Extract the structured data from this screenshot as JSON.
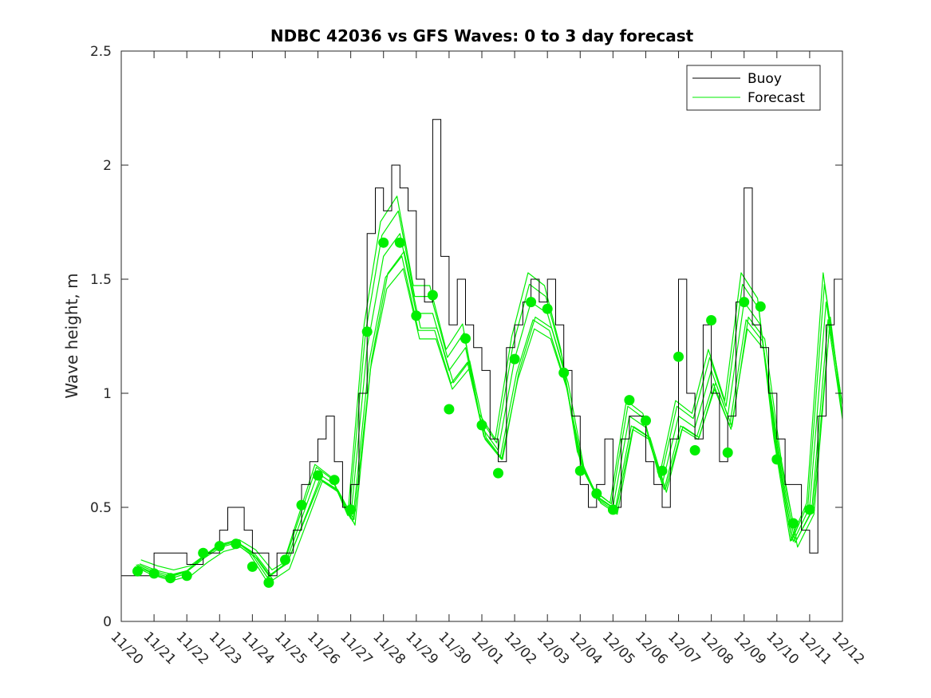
{
  "chart_data": {
    "type": "line",
    "title": "NDBC 42036 vs GFS Waves: 0 to 3 day forecast",
    "xlabel": "",
    "ylabel": "Wave height, m",
    "xlim": [
      0,
      22
    ],
    "ylim": [
      0,
      2.5
    ],
    "x_ticks": [
      0,
      1,
      2,
      3,
      4,
      5,
      6,
      7,
      8,
      9,
      10,
      11,
      12,
      13,
      14,
      15,
      16,
      17,
      18,
      19,
      20,
      21,
      22
    ],
    "x_tick_labels": [
      "11/20",
      "11/21",
      "11/22",
      "11/23",
      "11/24",
      "11/25",
      "11/26",
      "11/27",
      "11/28",
      "11/29",
      "11/30",
      "12/01",
      "12/02",
      "12/03",
      "12/04",
      "12/05",
      "12/06",
      "12/07",
      "12/08",
      "12/09",
      "12/10",
      "12/11",
      "12/12"
    ],
    "y_ticks": [
      0,
      0.5,
      1,
      1.5,
      2,
      2.5
    ],
    "y_tick_labels": [
      "0",
      "0.5",
      "1",
      "1.5",
      "2",
      "2.5"
    ],
    "legend": {
      "position": "top-right",
      "entries": [
        {
          "label": "Buoy",
          "color": "#000000"
        },
        {
          "label": "Forecast",
          "color": "#00ee00"
        }
      ]
    },
    "colors": {
      "buoy": "#000000",
      "forecast": "#00ee00",
      "analysis": "#00ee00"
    },
    "series": [
      {
        "name": "Buoy",
        "x_days": [
          0,
          0.5,
          1,
          1.5,
          2,
          2.5,
          3,
          3.25,
          3.5,
          3.75,
          4,
          4.25,
          4.5,
          4.75,
          5,
          5.25,
          5.5,
          5.75,
          6,
          6.25,
          6.5,
          6.75,
          7,
          7.25,
          7.5,
          7.75,
          8,
          8.25,
          8.5,
          8.75,
          9,
          9.25,
          9.5,
          9.75,
          10,
          10.25,
          10.5,
          10.75,
          11,
          11.25,
          11.5,
          11.75,
          12,
          12.25,
          12.5,
          12.75,
          13,
          13.25,
          13.5,
          13.75,
          14,
          14.25,
          14.5,
          14.75,
          15,
          15.25,
          15.5,
          15.75,
          16,
          16.25,
          16.5,
          16.75,
          17,
          17.25,
          17.5,
          17.75,
          18,
          18.25,
          18.5,
          18.75,
          19,
          19.25,
          19.5,
          19.75,
          20,
          20.25,
          20.5,
          20.75,
          21,
          21.25,
          21.5,
          21.75
        ],
        "values": [
          0.2,
          0.2,
          0.3,
          0.3,
          0.25,
          0.3,
          0.4,
          0.5,
          0.5,
          0.4,
          0.3,
          0.3,
          0.2,
          0.3,
          0.3,
          0.4,
          0.6,
          0.7,
          0.8,
          0.9,
          0.7,
          0.5,
          0.6,
          1.0,
          1.7,
          1.9,
          1.8,
          2.0,
          1.9,
          1.8,
          1.5,
          1.4,
          2.2,
          1.6,
          1.3,
          1.5,
          1.3,
          1.2,
          1.1,
          0.8,
          0.7,
          1.2,
          1.3,
          1.4,
          1.5,
          1.4,
          1.5,
          1.3,
          1.1,
          0.9,
          0.6,
          0.5,
          0.6,
          0.8,
          0.5,
          0.8,
          0.9,
          0.9,
          0.7,
          0.6,
          0.5,
          0.8,
          1.5,
          1.0,
          0.8,
          1.3,
          1.0,
          0.7,
          0.9,
          1.4,
          1.9,
          1.3,
          1.2,
          1.0,
          0.8,
          0.6,
          0.6,
          0.4,
          0.3,
          0.9,
          1.3,
          1.5
        ]
      },
      {
        "name": "Forecast",
        "x_days": [
          0.5,
          1,
          1.5,
          2,
          2.5,
          3,
          3.5,
          4,
          4.5,
          5,
          5.5,
          6,
          6.5,
          7,
          7.5,
          8,
          8.5,
          9,
          9.5,
          10,
          10.5,
          11,
          11.5,
          12,
          12.5,
          13,
          13.5,
          14,
          14.5,
          15,
          15.5,
          16,
          16.5,
          17,
          17.5,
          18,
          18.5,
          19,
          19.5,
          20,
          20.5,
          21,
          21.5,
          22
        ],
        "values": [
          0.25,
          0.22,
          0.2,
          0.22,
          0.28,
          0.33,
          0.35,
          0.3,
          0.2,
          0.25,
          0.45,
          0.65,
          0.6,
          0.45,
          1.2,
          1.6,
          1.7,
          1.35,
          1.35,
          1.1,
          1.2,
          0.85,
          0.75,
          1.15,
          1.4,
          1.35,
          1.1,
          0.7,
          0.55,
          0.5,
          0.9,
          0.85,
          0.6,
          0.9,
          0.85,
          1.1,
          0.9,
          1.4,
          1.3,
          0.75,
          0.35,
          0.5,
          1.4,
          0.95
        ]
      },
      {
        "name": "Forecast analysis points",
        "x_days": [
          0.5,
          1,
          1.5,
          2,
          2.5,
          3,
          3.5,
          4,
          4.5,
          5,
          5.5,
          6,
          6.5,
          7,
          7.5,
          8,
          8.5,
          9,
          9.5,
          10,
          10.5,
          11,
          11.5,
          12,
          12.5,
          13,
          13.5,
          14,
          14.5,
          15,
          15.5,
          16,
          16.5,
          17,
          17.5,
          18,
          18.5,
          19,
          19.5,
          20,
          20.5,
          21
        ],
        "values": [
          0.22,
          0.21,
          0.19,
          0.2,
          0.3,
          0.33,
          0.34,
          0.24,
          0.17,
          0.27,
          0.51,
          0.64,
          0.62,
          0.49,
          1.27,
          1.66,
          1.66,
          1.34,
          1.43,
          0.93,
          1.24,
          0.86,
          0.65,
          1.15,
          1.4,
          1.37,
          1.09,
          0.66,
          0.56,
          0.49,
          0.97,
          0.88,
          0.66,
          1.16,
          0.75,
          1.32,
          0.74,
          1.4,
          1.38,
          0.71,
          0.43,
          0.49
        ]
      }
    ]
  }
}
